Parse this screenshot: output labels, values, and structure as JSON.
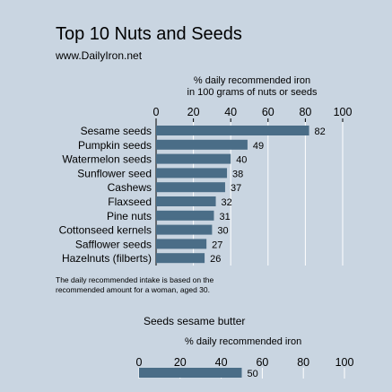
{
  "header": {
    "title": "Top 10 Nuts and Seeds",
    "source": "www.DailyIron.net"
  },
  "chart_data": [
    {
      "type": "bar",
      "orientation": "horizontal",
      "xlabel_line1": "% daily recommended iron",
      "xlabel_line2": "in 100 grams of nuts or seeds",
      "xlim": [
        0,
        100
      ],
      "ticks": [
        0,
        20,
        40,
        60,
        80,
        100
      ],
      "grid": true,
      "categories": [
        "Sesame seeds",
        "Pumpkin seeds",
        "Watermelon seeds",
        "Sunflower seed",
        "Cashews",
        "Flaxseed",
        "Pine nuts",
        "Cottonseed kernels",
        "Safflower seeds",
        "Hazelnuts (filberts)"
      ],
      "values": [
        82,
        49,
        40,
        38,
        37,
        32,
        31,
        30,
        27,
        26
      ],
      "footnote_line1": "The daily recommended intake is based on the",
      "footnote_line2": "recommended amount for a woman, aged 30.",
      "bar_color": "#4a6d87"
    },
    {
      "type": "bar",
      "orientation": "horizontal",
      "title": "Seeds sesame butter",
      "xlabel": "% daily recommended iron",
      "xlim": [
        0,
        100
      ],
      "ticks": [
        0,
        20,
        40,
        60,
        80,
        100
      ],
      "grid": true,
      "categories": [
        ""
      ],
      "values": [
        50
      ],
      "bar_color": "#4a6d87"
    }
  ]
}
